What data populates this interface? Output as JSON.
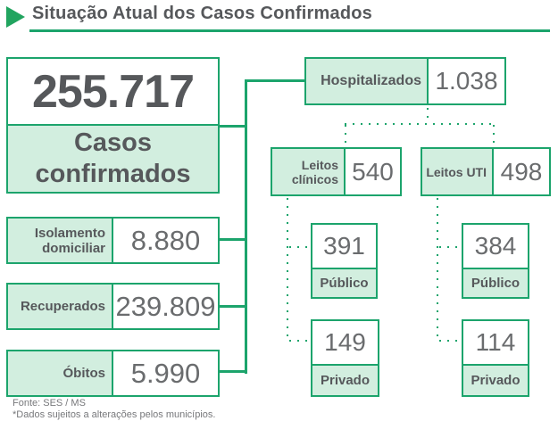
{
  "title": {
    "text": "Situação Atual dos Casos Confirmados"
  },
  "summary": {
    "value": "255.717",
    "label": "Casos confirmados"
  },
  "stats": [
    {
      "label": "Isolamento domiciliar",
      "value": "8.880"
    },
    {
      "label": "Recuperados",
      "value": "239.809"
    },
    {
      "label": "Óbitos",
      "value": "5.990"
    }
  ],
  "hospitalized": {
    "label": "Hospitalizados",
    "value": "1.038"
  },
  "beds": [
    {
      "label": "Leitos clínicos",
      "value": "540",
      "public": {
        "value": "391",
        "label": "Público"
      },
      "private": {
        "value": "149",
        "label": "Privado"
      }
    },
    {
      "label": "Leitos UTI",
      "value": "498",
      "public": {
        "value": "384",
        "label": "Público"
      },
      "private": {
        "value": "114",
        "label": "Privado"
      }
    }
  ],
  "footer": {
    "source": "Fonte: SES / MS",
    "note": "*Dados sujeitos a alterações pelos municípios."
  },
  "colors": {
    "accent_green": "#1ca46c",
    "mint_fill": "#d2eedf",
    "heading_text": "#56585b",
    "value_text": "#6a6c6e"
  }
}
